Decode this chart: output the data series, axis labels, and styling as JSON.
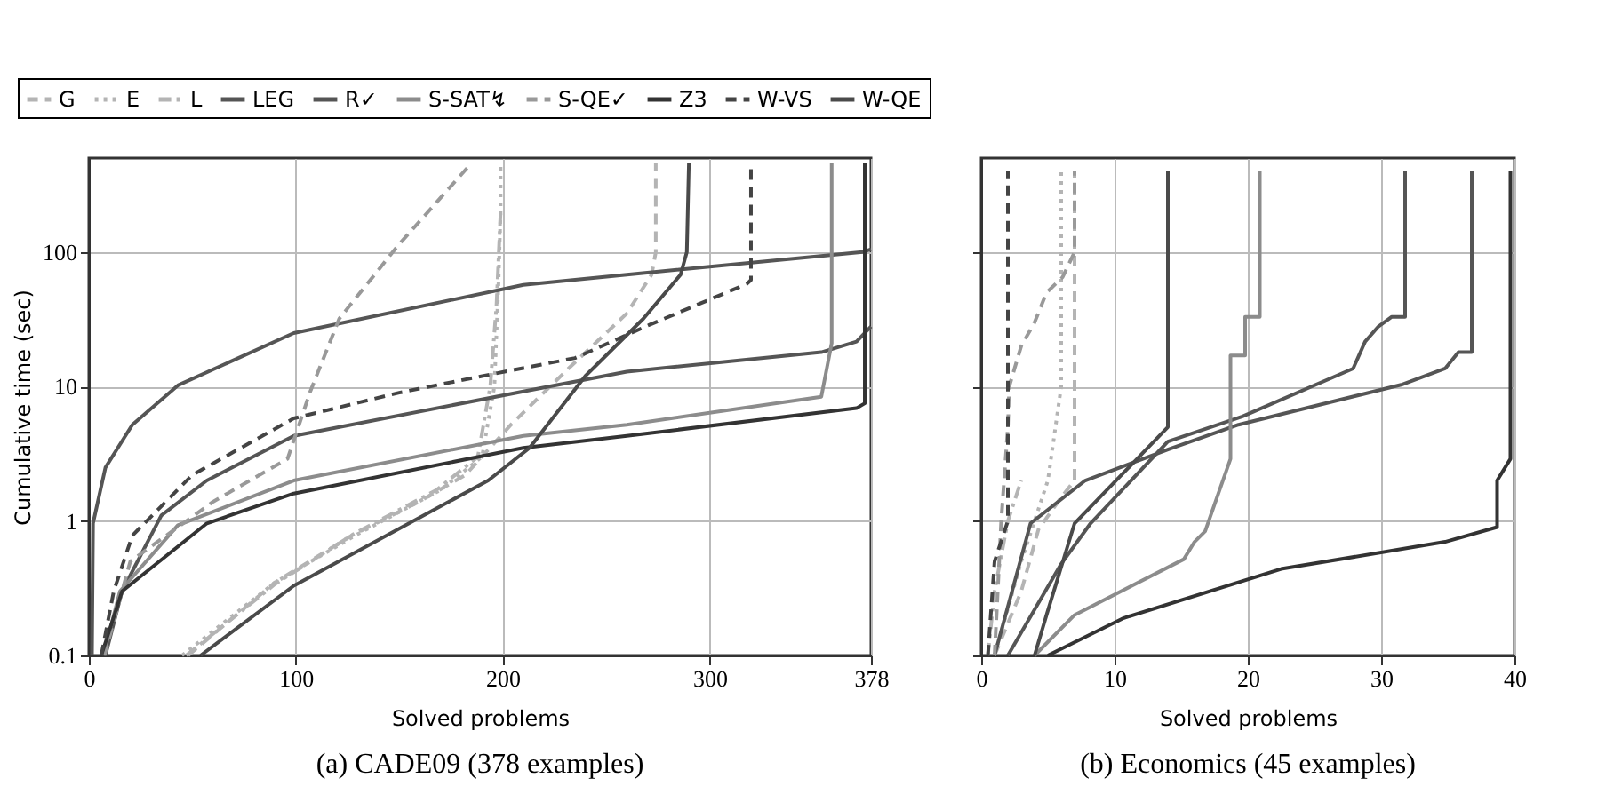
{
  "chart_data": [
    {
      "type": "line",
      "title": "(a) CADE09 (378 examples)",
      "xlabel": "Solved problems",
      "ylabel": "Cumulative time (sec)",
      "log": "y",
      "grid": true,
      "legend": "top",
      "xlim": [
        0,
        378
      ],
      "xticks": [
        0,
        100,
        200,
        300,
        378
      ],
      "ylim": [
        0.1,
        500
      ],
      "yticks": [
        0.1,
        1,
        10,
        100
      ],
      "series": [
        {
          "name": "G",
          "color": "#b4b4b4",
          "line_style": "dashed",
          "x": [
            48,
            90,
            127,
            160,
            182,
            204,
            232,
            260,
            272,
            274,
            274
          ],
          "values": [
            0.1,
            0.35,
            0.78,
            1.4,
            2.2,
            5.2,
            13.7,
            35,
            68,
            100,
            460
          ]
        },
        {
          "name": "E",
          "color": "#b4b4b4",
          "line_style": "dotted",
          "x": [
            45,
            90,
            130,
            170,
            190,
            196,
            198,
            199,
            199
          ],
          "values": [
            0.1,
            0.35,
            0.8,
            1.7,
            3,
            10,
            60,
            200,
            460
          ]
        },
        {
          "name": "L",
          "color": "#b4b4b4",
          "line_style": "dashdot",
          "x": [
            47,
            90,
            128,
            168,
            188,
            194,
            197,
            199
          ],
          "values": [
            0.1,
            0.34,
            0.8,
            1.7,
            3,
            10,
            40,
            200
          ]
        },
        {
          "name": "LEG",
          "color": "#555555",
          "line_style": "solid",
          "x": [
            1.5,
            2,
            8,
            21,
            43,
            99,
            210,
            260,
            374,
            378
          ],
          "values": [
            0.1,
            0.96,
            2.5,
            5.2,
            10.2,
            25,
            57,
            68,
            100,
            105
          ]
        },
        {
          "name": "R✓",
          "color": "#555555",
          "line_style": "solid",
          "x": [
            8,
            16,
            35,
            57,
            99,
            210,
            260,
            354,
            371,
            378
          ],
          "values": [
            0.1,
            0.3,
            1.1,
            2.0,
            4.3,
            9.2,
            12.9,
            18,
            21.6,
            28
          ]
        },
        {
          "name": "S-SAT↯",
          "color": "#8c8c8c",
          "line_style": "solid",
          "x": [
            7,
            15,
            43,
            99,
            210,
            260,
            354,
            359,
            359
          ],
          "values": [
            0.1,
            0.3,
            0.93,
            2.0,
            4.3,
            5.2,
            8.4,
            21,
            460
          ]
        },
        {
          "name": "S-QE✓",
          "color": "#999999",
          "line_style": "dashed",
          "x": [
            7.5,
            20,
            60,
            96,
            107,
            121,
            149,
            185
          ],
          "values": [
            0.1,
            0.5,
            1.39,
            2.9,
            9.2,
            32,
            110,
            460
          ]
        },
        {
          "name": "Z3",
          "color": "#333333",
          "line_style": "solid",
          "x": [
            6,
            16,
            57,
            99,
            210,
            260,
            371,
            375,
            375
          ],
          "values": [
            0.1,
            0.3,
            0.96,
            1.6,
            3.5,
            4.3,
            6.9,
            7.5,
            460
          ]
        },
        {
          "name": "W-VS",
          "color": "#444444",
          "line_style": "dashed",
          "x": [
            6,
            12,
            21,
            50,
            99,
            150,
            193,
            235,
            271,
            318,
            320,
            320
          ],
          "values": [
            0.1,
            0.3,
            0.78,
            2.2,
            5.8,
            9,
            12.2,
            16.3,
            28.8,
            58,
            62,
            460
          ]
        },
        {
          "name": "W-QE",
          "color": "#4a4a4a",
          "line_style": "solid",
          "x": [
            54,
            99,
            193,
            213,
            240,
            268,
            286,
            289,
            290
          ],
          "values": [
            0.1,
            0.33,
            2,
            3.5,
            12,
            32,
            68,
            100,
            460
          ]
        }
      ]
    },
    {
      "type": "line",
      "title": "(b) Economics (45 examples)",
      "xlabel": "Solved problems",
      "log": "y",
      "grid": true,
      "tick_labels": "x",
      "xlim": [
        0,
        40
      ],
      "xticks": [
        0,
        10,
        20,
        30,
        40
      ],
      "ylim": [
        0.1,
        500
      ],
      "yticks": [
        0.1,
        1,
        10,
        100
      ],
      "series": [
        {
          "color": "#b4b4b4",
          "line_style": "dashed",
          "x": [
            1,
            3,
            4.3,
            6,
            7,
            7
          ],
          "values": [
            0.1,
            0.3,
            0.87,
            1.5,
            2,
            400
          ]
        },
        {
          "color": "#b4b4b4",
          "line_style": "dotted",
          "x": [
            1,
            3,
            5,
            6,
            6
          ],
          "values": [
            0.1,
            0.5,
            2,
            10,
            400
          ]
        },
        {
          "color": "#b4b4b4",
          "line_style": "dashdot",
          "x": [
            0.5,
            1,
            2,
            3
          ],
          "values": [
            0.1,
            0.3,
            1,
            2
          ]
        },
        {
          "color": "#555555",
          "line_style": "solid",
          "x": [
            1,
            3.7,
            7.8,
            14,
            19.3,
            31.5,
            34.8,
            35.8,
            36.8,
            36.8
          ],
          "values": [
            0.1,
            0.96,
            2.0,
            3.4,
            5.2,
            10.3,
            13.6,
            18,
            18,
            400
          ]
        },
        {
          "color": "#555555",
          "line_style": "solid",
          "x": [
            2,
            6,
            8.2,
            14,
            19.6,
            27.9,
            28.8,
            29.8,
            30.8,
            31.8,
            31.8
          ],
          "values": [
            0.1,
            0.48,
            0.96,
            3.9,
            6,
            13.6,
            21.6,
            28,
            33,
            33,
            400
          ]
        },
        {
          "color": "#8c8c8c",
          "line_style": "solid",
          "x": [
            4,
            7,
            15.2,
            16,
            16.8,
            18.7,
            18.7,
            19.8,
            19.8,
            20.9,
            20.9
          ],
          "values": [
            0.1,
            0.2,
            0.52,
            0.7,
            0.84,
            2.9,
            17,
            17,
            33,
            33,
            400
          ]
        },
        {
          "color": "#999999",
          "line_style": "dashed",
          "x": [
            1,
            1.5,
            2,
            2.1,
            3,
            4,
            4.9,
            6.1,
            7,
            7
          ],
          "values": [
            0.1,
            1,
            5,
            10,
            20,
            30,
            50,
            65,
            100,
            400
          ]
        },
        {
          "color": "#333333",
          "line_style": "solid",
          "x": [
            5,
            10.7,
            22.5,
            34.8,
            38.7,
            38.7,
            39.7,
            39.7
          ],
          "values": [
            0.1,
            0.19,
            0.44,
            0.7,
            0.9,
            2.0,
            2.9,
            400
          ]
        },
        {
          "color": "#444444",
          "line_style": "dashed",
          "x": [
            0.5,
            1,
            2,
            2
          ],
          "values": [
            0.1,
            0.5,
            1,
            400
          ]
        },
        {
          "color": "#4a4a4a",
          "line_style": "solid",
          "x": [
            4,
            4.9,
            7,
            14,
            14
          ],
          "values": [
            0.1,
            0.2,
            0.96,
            5.0,
            400
          ]
        }
      ]
    }
  ]
}
